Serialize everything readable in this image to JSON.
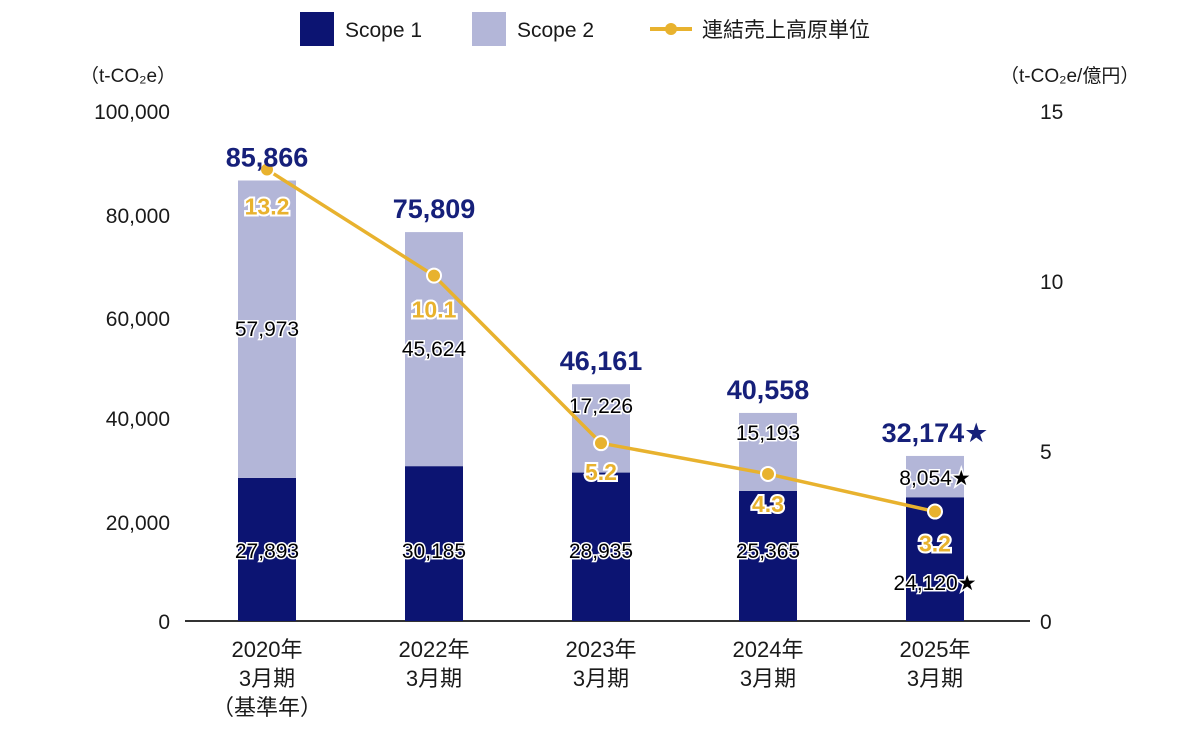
{
  "colors": {
    "scope1": "#0c1472",
    "scope2": "#b3b6d8",
    "line": "#e8b22e",
    "axis": "#333333",
    "text": "#1a1a1a",
    "total": "#16207a"
  },
  "legend": {
    "scope1": "Scope 1",
    "scope2": "Scope 2",
    "line": "連結売上高原単位"
  },
  "axes": {
    "left_unit": "（t-CO₂e）",
    "right_unit": "（t-CO₂e/億円）",
    "left_ticks": [
      "0",
      "20,000",
      "40,000",
      "60,000",
      "80,000",
      "100,000"
    ],
    "right_ticks": [
      "0",
      "5",
      "10",
      "15"
    ]
  },
  "chart_data": {
    "type": "bar",
    "stacked": true,
    "categories": [
      [
        "2020年",
        "3月期",
        "（基準年）"
      ],
      [
        "2022年",
        "3月期"
      ],
      [
        "2023年",
        "3月期"
      ],
      [
        "2024年",
        "3月期"
      ],
      [
        "2025年",
        "3月期"
      ]
    ],
    "series": [
      {
        "name": "Scope 1",
        "values": [
          27893,
          30185,
          28935,
          25365,
          24120
        ],
        "labels": [
          "27,893",
          "30,185",
          "28,935",
          "25,365",
          "24,120★"
        ]
      },
      {
        "name": "Scope 2",
        "values": [
          57973,
          45624,
          17226,
          15193,
          8054
        ],
        "labels": [
          "57,973",
          "45,624",
          "17,226",
          "15,193",
          "8,054★"
        ]
      }
    ],
    "totals": {
      "values": [
        85866,
        75809,
        46161,
        40558,
        32174
      ],
      "labels": [
        "85,866",
        "75,809",
        "46,161",
        "40,558",
        "32,174★"
      ]
    },
    "line_series": {
      "name": "連結売上高原単位",
      "axis": "right",
      "values": [
        13.2,
        10.1,
        5.2,
        4.3,
        3.2
      ],
      "labels": [
        "13.2",
        "10.1",
        "5.2",
        "4.3",
        "3.2"
      ]
    },
    "ylim": [
      0,
      100000
    ],
    "y2lim": [
      0,
      15
    ],
    "legend_position": "top-center",
    "grid": false
  }
}
